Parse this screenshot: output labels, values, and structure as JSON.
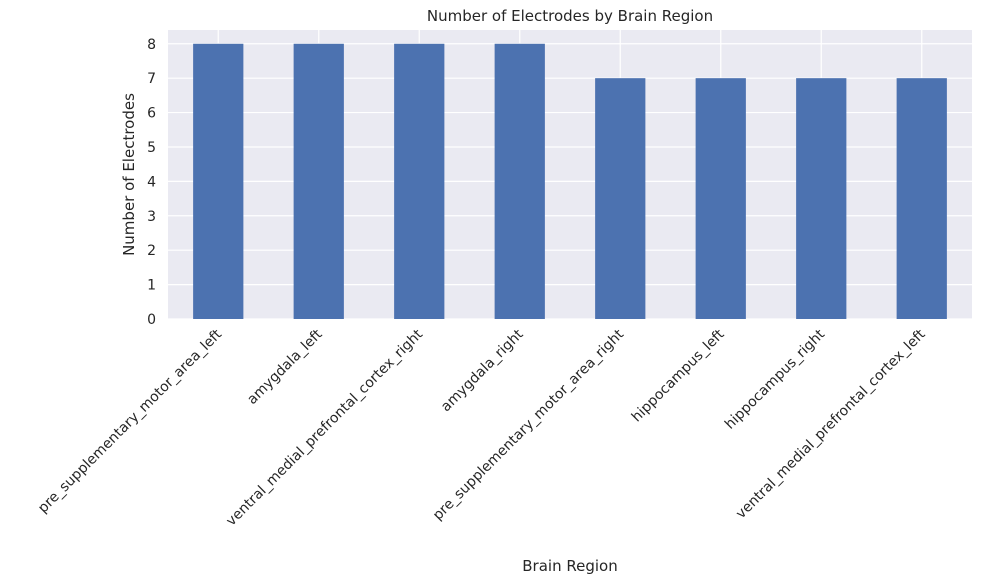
{
  "chart_data": {
    "type": "bar",
    "title": "Number of Electrodes by Brain Region",
    "xlabel": "Brain Region",
    "ylabel": "Number of Electrodes",
    "categories": [
      "pre_supplementary_motor_area_left",
      "amygdala_left",
      "ventral_medial_prefrontal_cortex_right",
      "amygdala_right",
      "pre_supplementary_motor_area_right",
      "hippocampus_left",
      "hippocampus_right",
      "ventral_medial_prefrontal_cortex_left"
    ],
    "values": [
      8,
      8,
      8,
      8,
      7,
      7,
      7,
      7
    ],
    "yticks": [
      "0",
      "1",
      "2",
      "3",
      "4",
      "5",
      "6",
      "7",
      "8"
    ],
    "ylim": [
      0,
      8.4
    ],
    "grid": true,
    "legend": "none",
    "colors": {
      "bar": "#4c72b0",
      "background": "#eaeaf2",
      "grid": "#ffffff"
    }
  }
}
